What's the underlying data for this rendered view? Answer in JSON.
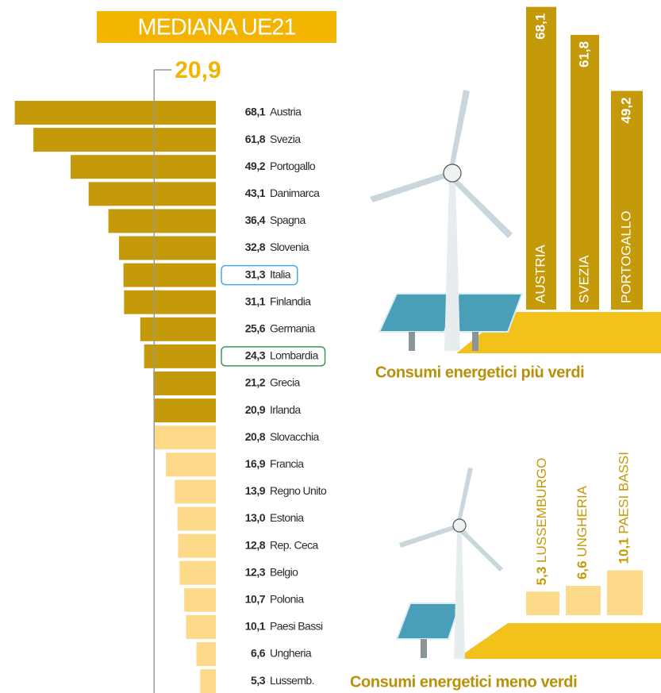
{
  "chart_data": [
    {
      "type": "hbar",
      "title": "MEDIANA UE21",
      "median": 20.9,
      "median_label": "20,9",
      "categories": [
        "Austria",
        "Svezia",
        "Portogallo",
        "Danimarca",
        "Spagna",
        "Slovenia",
        "Italia",
        "Finlandia",
        "Germania",
        "Lombardia",
        "Grecia",
        "Irlanda",
        "Slovacchia",
        "Francia",
        "Regno Unito",
        "Estonia",
        "Rep. Ceca",
        "Belgio",
        "Polonia",
        "Paesi Bassi",
        "Ungheria",
        "Lussemb."
      ],
      "values": [
        68.1,
        61.8,
        49.2,
        43.1,
        36.4,
        32.8,
        31.3,
        31.1,
        25.6,
        24.3,
        21.2,
        20.9,
        20.8,
        16.9,
        13.9,
        13.0,
        12.8,
        12.3,
        10.7,
        10.1,
        6.6,
        5.3
      ],
      "value_labels": [
        "68,1",
        "61,8",
        "49,2",
        "43,1",
        "36,4",
        "32,8",
        "31,3",
        "31,1",
        "25,6",
        "24,3",
        "21,2",
        "20,9",
        "20,8",
        "16,9",
        "13,9",
        "13,0",
        "12,8",
        "12,3",
        "10,7",
        "10,1",
        "6,6",
        "5,3"
      ],
      "color_above": "#c49a0a",
      "color_below": "#fdd98a",
      "highlights": [
        {
          "index": 6,
          "color": "#4aa8dc"
        },
        {
          "index": 9,
          "color": "#3a9a55"
        }
      ]
    },
    {
      "type": "vbar",
      "title": "Consumi energetici più verdi",
      "color": "#c49a0a",
      "label_style": "inside",
      "categories": [
        "AUSTRIA",
        "SVEZIA",
        "PORTOGALLO"
      ],
      "values": [
        68.1,
        61.8,
        49.2
      ],
      "value_labels": [
        "68,1",
        "61,8",
        "49,2"
      ]
    },
    {
      "type": "vbar",
      "title": "Consumi energetici meno verdi",
      "color": "#fdd98a",
      "label_style": "above",
      "categories": [
        "LUSSEMBURGO",
        "UNGHERIA",
        "PAESI BASSI"
      ],
      "values": [
        5.3,
        6.6,
        10.1
      ],
      "value_labels": [
        "5,3",
        "6,6",
        "10,1"
      ]
    }
  ]
}
